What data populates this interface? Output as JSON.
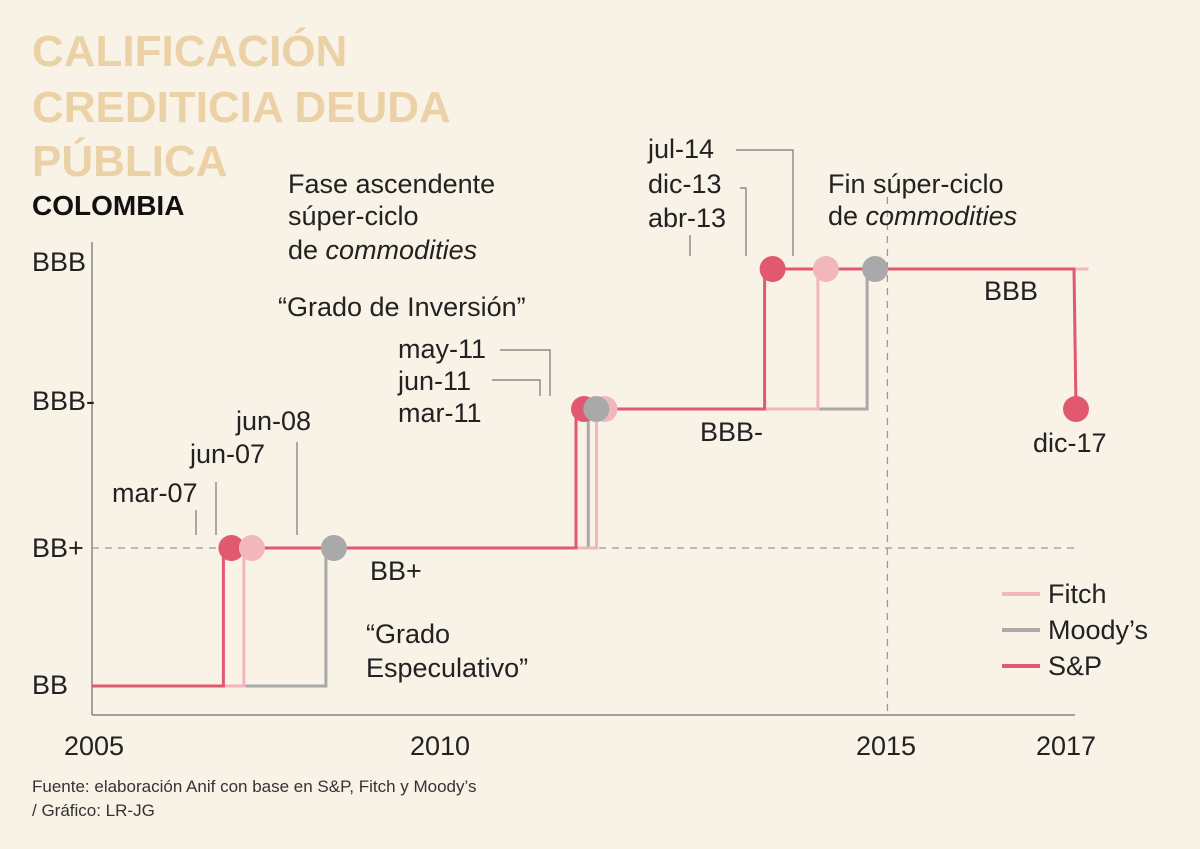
{
  "title_lines": [
    "CALIFICACIÓN",
    "CREDITICIA DEUDA",
    "PÚBLICA"
  ],
  "subtitle": "COLOMBIA",
  "source_lines": [
    "Fuente: elaboración Anif con base en S&P, Fitch y Moody’s",
    "/ Gráfico: LR-JG"
  ],
  "colors": {
    "background": "#f8f2e7",
    "title": "#ebd1a6",
    "sp": "#e0596e",
    "fitch": "#f2b7bc",
    "moodys": "#a9a9a9",
    "axis": "#888888"
  },
  "chart_data": {
    "type": "line",
    "subtype": "step",
    "x_axis": {
      "ticks": [
        "2005",
        "2010",
        "2015",
        "2017"
      ],
      "range": [
        2005,
        2017.2
      ]
    },
    "y_axis": {
      "categories": [
        "BB",
        "BB+",
        "BBB-",
        "BBB"
      ]
    },
    "series": [
      {
        "name": "S&P",
        "color": "#e0596e",
        "changes": [
          {
            "date": "mar-07",
            "t": 2006.7,
            "from": "BB",
            "to": "BB+"
          },
          {
            "date": "mar-11",
            "t": 2011.0,
            "from": "BB+",
            "to": "BBB-"
          },
          {
            "date": "abr-13",
            "t": 2013.3,
            "from": "BBB-",
            "to": "BBB"
          },
          {
            "date": "dic-17",
            "t": 2017.0,
            "from": "BBB",
            "to": "BBB-"
          }
        ]
      },
      {
        "name": "Fitch",
        "color": "#f2b7bc",
        "changes": [
          {
            "date": "jun-07",
            "t": 2006.95,
            "from": "BB",
            "to": "BB+"
          },
          {
            "date": "jun-11",
            "t": 2011.25,
            "from": "BB+",
            "to": "BBB-"
          },
          {
            "date": "dic-13",
            "t": 2013.95,
            "from": "BBB-",
            "to": "BBB"
          }
        ]
      },
      {
        "name": "Moody’s",
        "color": "#a9a9a9",
        "changes": [
          {
            "date": "jun-08",
            "t": 2007.95,
            "from": "BB",
            "to": "BB+"
          },
          {
            "date": "may-11",
            "t": 2011.15,
            "from": "BB+",
            "to": "BBB-"
          },
          {
            "date": "jul-14",
            "t": 2014.55,
            "from": "BBB-",
            "to": "BBB"
          }
        ]
      }
    ],
    "legend": {
      "placement": "bottom-right",
      "entries": [
        "Fitch",
        "Moody’s",
        "S&P"
      ]
    },
    "reference_lines": [
      {
        "axis": "y",
        "value": "BB+",
        "style": "dashed"
      },
      {
        "axis": "x",
        "value": 2014.7,
        "style": "dashed"
      }
    ],
    "level_labels": [
      "BB+",
      "BBB-",
      "BBB"
    ],
    "annotations": {
      "phase_up": [
        "Fase ascendente",
        "súper-ciclo",
        "de ",
        "commodities"
      ],
      "phase_end": [
        "Fin súper-ciclo",
        "de ",
        "commodities"
      ],
      "investment": "“Grado de Inversión”",
      "speculative": [
        "“Grado",
        "Especulativo”"
      ]
    }
  }
}
